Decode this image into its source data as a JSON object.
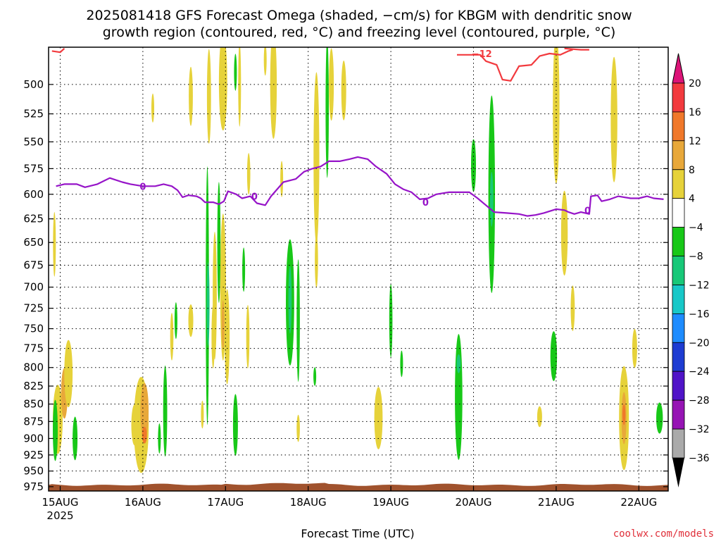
{
  "page": {
    "title_line1": "2025081418 GFS Forecast Omega (shaded, −cm/s) for KBGM with dendritic snow",
    "title_line2": "growth region (contoured, red, °C) and freezing level (contoured, purple, °C)",
    "credit": "coolwx.com/models"
  },
  "chart_data": {
    "type": "heatmap",
    "title": "2025081418 GFS Forecast Omega (shaded, −cm/s) for KBGM with dendritic snow growth region (contoured, red, °C) and freezing level (contoured, purple, °C)",
    "xlabel": "Forecast Time (UTC)",
    "ylabel": "",
    "x_units": "days since 15AUG 2025 00 UTC",
    "xlim": [
      -0.1,
      7.3
    ],
    "ylim_hPa": [
      982,
      470
    ],
    "y_ticks": [
      500,
      525,
      550,
      575,
      600,
      625,
      650,
      675,
      700,
      725,
      750,
      775,
      800,
      825,
      850,
      875,
      900,
      925,
      950,
      975
    ],
    "x_ticks": [
      {
        "x": 0,
        "label": "15AUG",
        "sub": "2025"
      },
      {
        "x": 1,
        "label": "16AUG"
      },
      {
        "x": 2,
        "label": "17AUG"
      },
      {
        "x": 3,
        "label": "18AUG"
      },
      {
        "x": 4,
        "label": "19AUG"
      },
      {
        "x": 5,
        "label": "20AUG"
      },
      {
        "x": 6,
        "label": "21AUG"
      },
      {
        "x": 7,
        "label": "22AUG"
      }
    ],
    "grid": true,
    "colorbar": {
      "labels": [
        "20",
        "16",
        "12",
        "8",
        "4",
        "−4",
        "−8",
        "−12",
        "−16",
        "−20",
        "−24",
        "−28",
        "−32",
        "−36"
      ],
      "colors": [
        "#f23a3e",
        "#f0782a",
        "#e8a83a",
        "#e6d23a",
        "#ffffff",
        "#18c818",
        "#18c878",
        "#18c8c8",
        "#1e8cff",
        "#1e3cd2",
        "#5014c8",
        "#9614b4",
        "#aaaaaa"
      ],
      "top_arrow": "#dc1478",
      "bottom_arrow": "#000000"
    },
    "ground": {
      "color": "#a0522d",
      "top_hPa": 972
    },
    "freezing_level": {
      "label": "0",
      "color": "#9614c8",
      "points": [
        [
          -0.05,
          592
        ],
        [
          0.05,
          590
        ],
        [
          0.2,
          590
        ],
        [
          0.3,
          593
        ],
        [
          0.45,
          590
        ],
        [
          0.6,
          584
        ],
        [
          0.75,
          588
        ],
        [
          0.85,
          590
        ],
        [
          1.0,
          592
        ],
        [
          1.15,
          592
        ],
        [
          1.25,
          590
        ],
        [
          1.35,
          592
        ],
        [
          1.42,
          596
        ],
        [
          1.48,
          603
        ],
        [
          1.55,
          601
        ],
        [
          1.65,
          602
        ],
        [
          1.7,
          604
        ],
        [
          1.75,
          608
        ],
        [
          1.85,
          608
        ],
        [
          1.92,
          610
        ],
        [
          1.98,
          607
        ],
        [
          2.03,
          597
        ],
        [
          2.13,
          600
        ],
        [
          2.2,
          604
        ],
        [
          2.3,
          602
        ],
        [
          2.38,
          609
        ],
        [
          2.48,
          611
        ],
        [
          2.55,
          602
        ],
        [
          2.7,
          588
        ],
        [
          2.85,
          585
        ],
        [
          2.95,
          578
        ],
        [
          3.05,
          575
        ],
        [
          3.15,
          573
        ],
        [
          3.25,
          568
        ],
        [
          3.38,
          568
        ],
        [
          3.5,
          566
        ],
        [
          3.6,
          564
        ],
        [
          3.72,
          566
        ],
        [
          3.82,
          573
        ],
        [
          3.95,
          580
        ],
        [
          4.05,
          590
        ],
        [
          4.15,
          595
        ],
        [
          4.25,
          598
        ],
        [
          4.35,
          605
        ],
        [
          4.45,
          604
        ],
        [
          4.55,
          600
        ],
        [
          4.7,
          598
        ],
        [
          4.95,
          598
        ],
        [
          5.05,
          604
        ],
        [
          5.15,
          611
        ],
        [
          5.25,
          618
        ],
        [
          5.4,
          619
        ],
        [
          5.55,
          620
        ],
        [
          5.65,
          622
        ],
        [
          5.75,
          621
        ],
        [
          5.85,
          619
        ],
        [
          6.0,
          615
        ],
        [
          6.1,
          616
        ],
        [
          6.15,
          618
        ],
        [
          6.22,
          620
        ],
        [
          6.3,
          618
        ],
        [
          6.4,
          620
        ],
        [
          6.42,
          602
        ],
        [
          6.5,
          601
        ],
        [
          6.55,
          607
        ],
        [
          6.65,
          605
        ],
        [
          6.75,
          602
        ],
        [
          6.9,
          604
        ],
        [
          7.0,
          604
        ],
        [
          7.1,
          602
        ],
        [
          7.18,
          604
        ],
        [
          7.3,
          605
        ]
      ],
      "label_positions": [
        [
          1.0,
          592
        ],
        [
          2.35,
          602
        ],
        [
          4.42,
          608
        ],
        [
          6.38,
          616
        ]
      ]
    },
    "dendritic_contour": {
      "label": "−12",
      "color": "#f23a3e",
      "segments": [
        [
          [
            4.8,
            476
          ],
          [
            5.08,
            476
          ],
          [
            5.15,
            481
          ],
          [
            5.28,
            484
          ],
          [
            5.35,
            496
          ],
          [
            5.45,
            497
          ],
          [
            5.55,
            485
          ],
          [
            5.7,
            484
          ],
          [
            5.8,
            477
          ],
          [
            5.92,
            475
          ],
          [
            6.05,
            476
          ],
          [
            6.15,
            473
          ],
          [
            6.2,
            472
          ]
        ],
        [
          [
            -0.1,
            473
          ],
          [
            0.0,
            474
          ],
          [
            0.05,
            471
          ]
        ],
        [
          [
            6.1,
            471
          ],
          [
            6.3,
            472
          ],
          [
            6.4,
            472
          ]
        ]
      ],
      "label_position": [
        5.1,
        475
      ]
    },
    "omega_cells": [
      {
        "x": -0.03,
        "p": 872,
        "w": 0.12,
        "dp": 100,
        "level": "yellow"
      },
      {
        "x": 0.05,
        "p": 835,
        "w": 0.08,
        "dp": 70,
        "level": "orange"
      },
      {
        "x": 0.1,
        "p": 808,
        "w": 0.1,
        "dp": 90,
        "level": "yellow"
      },
      {
        "x": -0.07,
        "p": 652,
        "w": 0.03,
        "dp": 70,
        "level": "yellow"
      },
      {
        "x": -0.06,
        "p": 888,
        "w": 0.06,
        "dp": 90,
        "level": "green"
      },
      {
        "x": 0.18,
        "p": 900,
        "w": 0.06,
        "dp": 65,
        "level": "green"
      },
      {
        "x": 0.98,
        "p": 880,
        "w": 0.18,
        "dp": 140,
        "level": "yellow"
      },
      {
        "x": 1.02,
        "p": 860,
        "w": 0.1,
        "dp": 80,
        "level": "orange"
      },
      {
        "x": 1.02,
        "p": 895,
        "w": 0.06,
        "dp": 25,
        "level": "orange2"
      },
      {
        "x": 0.9,
        "p": 880,
        "w": 0.08,
        "dp": 60,
        "level": "yellow"
      },
      {
        "x": 1.2,
        "p": 900,
        "w": 0.03,
        "dp": 45,
        "level": "green"
      },
      {
        "x": 1.27,
        "p": 860,
        "w": 0.05,
        "dp": 130,
        "level": "green"
      },
      {
        "x": 1.12,
        "p": 520,
        "w": 0.025,
        "dp": 25,
        "level": "yellow"
      },
      {
        "x": 1.35,
        "p": 760,
        "w": 0.04,
        "dp": 60,
        "level": "yellow"
      },
      {
        "x": 1.4,
        "p": 740,
        "w": 0.03,
        "dp": 45,
        "level": "green"
      },
      {
        "x": 1.58,
        "p": 740,
        "w": 0.06,
        "dp": 40,
        "level": "yellow"
      },
      {
        "x": 1.72,
        "p": 865,
        "w": 0.025,
        "dp": 40,
        "level": "yellow"
      },
      {
        "x": 1.58,
        "p": 510,
        "w": 0.05,
        "dp": 50,
        "level": "yellow"
      },
      {
        "x": 1.8,
        "p": 510,
        "w": 0.05,
        "dp": 80,
        "level": "yellow"
      },
      {
        "x": 1.87,
        "p": 710,
        "w": 0.05,
        "dp": 150,
        "level": "yellow"
      },
      {
        "x": 1.78,
        "p": 710,
        "w": 0.04,
        "dp": 300,
        "level": "green"
      },
      {
        "x": 1.79,
        "p": 720,
        "w": 0.025,
        "dp": 100,
        "level": "teal"
      },
      {
        "x": 1.85,
        "p": 760,
        "w": 0.04,
        "dp": 80,
        "level": "yellow"
      },
      {
        "x": 1.97,
        "p": 700,
        "w": 0.07,
        "dp": 170,
        "level": "yellow"
      },
      {
        "x": 1.92,
        "p": 650,
        "w": 0.04,
        "dp": 130,
        "level": "green"
      },
      {
        "x": 2.02,
        "p": 760,
        "w": 0.06,
        "dp": 120,
        "level": "yellow"
      },
      {
        "x": 1.97,
        "p": 745,
        "w": 0.03,
        "dp": 60,
        "level": "orange"
      },
      {
        "x": 2.12,
        "p": 880,
        "w": 0.06,
        "dp": 90,
        "level": "green"
      },
      {
        "x": 1.97,
        "p": 498,
        "w": 0.1,
        "dp": 80,
        "level": "yellow"
      },
      {
        "x": 2.12,
        "p": 490,
        "w": 0.03,
        "dp": 30,
        "level": "green"
      },
      {
        "x": 2.17,
        "p": 500,
        "w": 0.03,
        "dp": 70,
        "level": "yellow"
      },
      {
        "x": 2.28,
        "p": 580,
        "w": 0.04,
        "dp": 40,
        "level": "yellow"
      },
      {
        "x": 2.22,
        "p": 680,
        "w": 0.03,
        "dp": 50,
        "level": "green"
      },
      {
        "x": 2.27,
        "p": 760,
        "w": 0.04,
        "dp": 80,
        "level": "yellow"
      },
      {
        "x": 2.58,
        "p": 500,
        "w": 0.08,
        "dp": 90,
        "level": "yellow"
      },
      {
        "x": 2.48,
        "p": 480,
        "w": 0.03,
        "dp": 25,
        "level": "yellow"
      },
      {
        "x": 2.78,
        "p": 718,
        "w": 0.1,
        "dp": 150,
        "level": "green"
      },
      {
        "x": 2.78,
        "p": 715,
        "w": 0.04,
        "dp": 80,
        "level": "teal"
      },
      {
        "x": 2.88,
        "p": 740,
        "w": 0.04,
        "dp": 150,
        "level": "green"
      },
      {
        "x": 2.68,
        "p": 585,
        "w": 0.025,
        "dp": 35,
        "level": "yellow"
      },
      {
        "x": 3.1,
        "p": 565,
        "w": 0.07,
        "dp": 160,
        "level": "yellow"
      },
      {
        "x": 3.1,
        "p": 670,
        "w": 0.04,
        "dp": 60,
        "level": "yellow"
      },
      {
        "x": 3.23,
        "p": 520,
        "w": 0.04,
        "dp": 120,
        "level": "green"
      },
      {
        "x": 3.28,
        "p": 500,
        "w": 0.06,
        "dp": 60,
        "level": "yellow"
      },
      {
        "x": 3.43,
        "p": 505,
        "w": 0.06,
        "dp": 50,
        "level": "yellow"
      },
      {
        "x": 2.88,
        "p": 885,
        "w": 0.04,
        "dp": 40,
        "level": "yellow"
      },
      {
        "x": 3.08,
        "p": 812,
        "w": 0.025,
        "dp": 25,
        "level": "green"
      },
      {
        "x": 4.0,
        "p": 740,
        "w": 0.04,
        "dp": 90,
        "level": "green"
      },
      {
        "x": 4.13,
        "p": 795,
        "w": 0.025,
        "dp": 35,
        "level": "green"
      },
      {
        "x": 3.85,
        "p": 870,
        "w": 0.1,
        "dp": 90,
        "level": "yellow"
      },
      {
        "x": 5.0,
        "p": 572,
        "w": 0.06,
        "dp": 50,
        "level": "green"
      },
      {
        "x": 5.22,
        "p": 600,
        "w": 0.08,
        "dp": 195,
        "level": "green"
      },
      {
        "x": 5.22,
        "p": 605,
        "w": 0.04,
        "dp": 55,
        "level": "teal"
      },
      {
        "x": 4.82,
        "p": 840,
        "w": 0.09,
        "dp": 175,
        "level": "green"
      },
      {
        "x": 4.82,
        "p": 795,
        "w": 0.05,
        "dp": 25,
        "level": "teal"
      },
      {
        "x": 6.0,
        "p": 520,
        "w": 0.08,
        "dp": 130,
        "level": "yellow"
      },
      {
        "x": 6.1,
        "p": 640,
        "w": 0.08,
        "dp": 90,
        "level": "yellow"
      },
      {
        "x": 6.2,
        "p": 725,
        "w": 0.05,
        "dp": 55,
        "level": "yellow"
      },
      {
        "x": 5.97,
        "p": 785,
        "w": 0.08,
        "dp": 65,
        "level": "green"
      },
      {
        "x": 5.8,
        "p": 868,
        "w": 0.06,
        "dp": 30,
        "level": "yellow"
      },
      {
        "x": 6.7,
        "p": 530,
        "w": 0.08,
        "dp": 110,
        "level": "yellow"
      },
      {
        "x": 6.82,
        "p": 870,
        "w": 0.12,
        "dp": 150,
        "level": "yellow"
      },
      {
        "x": 6.82,
        "p": 870,
        "w": 0.06,
        "dp": 75,
        "level": "orange"
      },
      {
        "x": 6.82,
        "p": 865,
        "w": 0.035,
        "dp": 30,
        "level": "orange2"
      },
      {
        "x": 6.95,
        "p": 775,
        "w": 0.06,
        "dp": 50,
        "level": "yellow"
      },
      {
        "x": 7.25,
        "p": 870,
        "w": 0.08,
        "dp": 45,
        "level": "green"
      }
    ],
    "omega_level_colors": {
      "yellow": "#e6d23a",
      "orange": "#e8a83a",
      "orange2": "#f0782a",
      "green": "#18c818",
      "teal": "#18c878"
    }
  }
}
